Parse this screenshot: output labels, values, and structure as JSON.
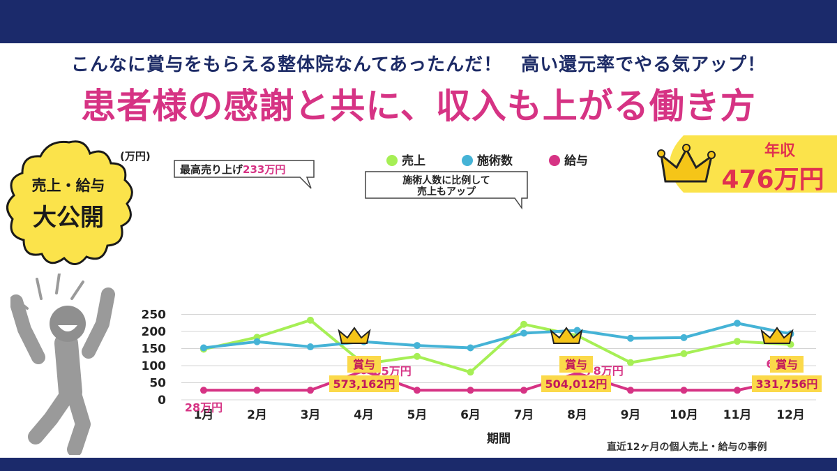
{
  "header": {
    "subtitle": "こんなに賞与をもらえる整体院なんてあったんだ！　高い還元率でやる気アップ！",
    "title": "患者様の感謝と共に、収入も上がる働き方"
  },
  "badge": {
    "line1": "売上・給与",
    "line2": "大公開"
  },
  "income": {
    "label": "年収",
    "value": "476万円"
  },
  "footer_note": "直近12ヶ月の個人売上・給与の事例",
  "colors": {
    "sales": "#a6ef55",
    "treatments": "#45b3d6",
    "salary": "#d63384",
    "navy": "#1b2a6b",
    "highlight": "#fbd94a"
  },
  "chart_data": {
    "type": "line",
    "categories": [
      "1月",
      "2月",
      "3月",
      "4月",
      "5月",
      "6月",
      "7月",
      "8月",
      "9月",
      "10月",
      "11月",
      "12月"
    ],
    "series": [
      {
        "name": "売上",
        "values": [
          148,
          183,
          233,
          105,
          127,
          81,
          221,
          188,
          109,
          135,
          171,
          162
        ]
      },
      {
        "name": "施術数",
        "values": [
          152,
          170,
          155,
          170,
          159,
          152,
          195,
          203,
          180,
          182,
          224,
          193
        ]
      },
      {
        "name": "給与",
        "values": [
          28,
          28,
          28,
          85,
          28,
          28,
          28,
          78,
          28,
          28,
          28,
          61
        ]
      }
    ],
    "ylabel": "(万円)",
    "xlabel": "期間",
    "ylim": [
      0,
      250
    ],
    "yticks": [
      0,
      50,
      100,
      150,
      200,
      250
    ],
    "legend_position": "top",
    "grid": true,
    "point_labels": [
      {
        "index": 0,
        "text": "28万円"
      },
      {
        "index": 3,
        "text": "85万円"
      },
      {
        "index": 7,
        "text": "78万円"
      },
      {
        "index": 11,
        "text": "61万円"
      }
    ],
    "callouts": [
      {
        "prefix": "最高売り上げ",
        "value": "233万円",
        "index": 2
      },
      {
        "line1": "施術人数に比例して",
        "line2": "売上もアップ",
        "index": 6
      }
    ],
    "bonuses": [
      {
        "index": 3,
        "label": "賞与",
        "amount": "573,162円"
      },
      {
        "index": 7,
        "label": "賞与",
        "amount": "504,012円"
      },
      {
        "index": 11,
        "label": "賞与",
        "amount": "331,756円"
      }
    ]
  }
}
